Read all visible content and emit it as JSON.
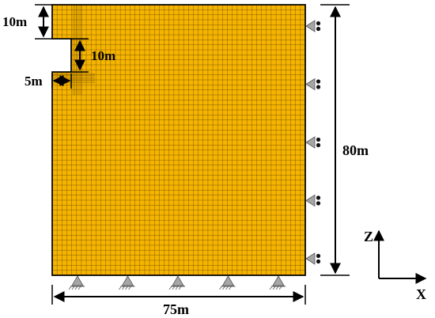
{
  "dimensions": {
    "top_notch_height": "10m",
    "step_height": "10m",
    "step_width": "5m",
    "total_height": "80m",
    "total_width": "75m"
  },
  "axes": {
    "vertical": "Z",
    "horizontal": "X"
  },
  "supports": {
    "bottom_pinned_count": 5,
    "right_roller_count": 5
  },
  "colors": {
    "mesh_fill": "#f5b400",
    "mesh_line": "#6b4a00",
    "support_fill": "#a6a6a6",
    "dimension_line": "#000000"
  }
}
